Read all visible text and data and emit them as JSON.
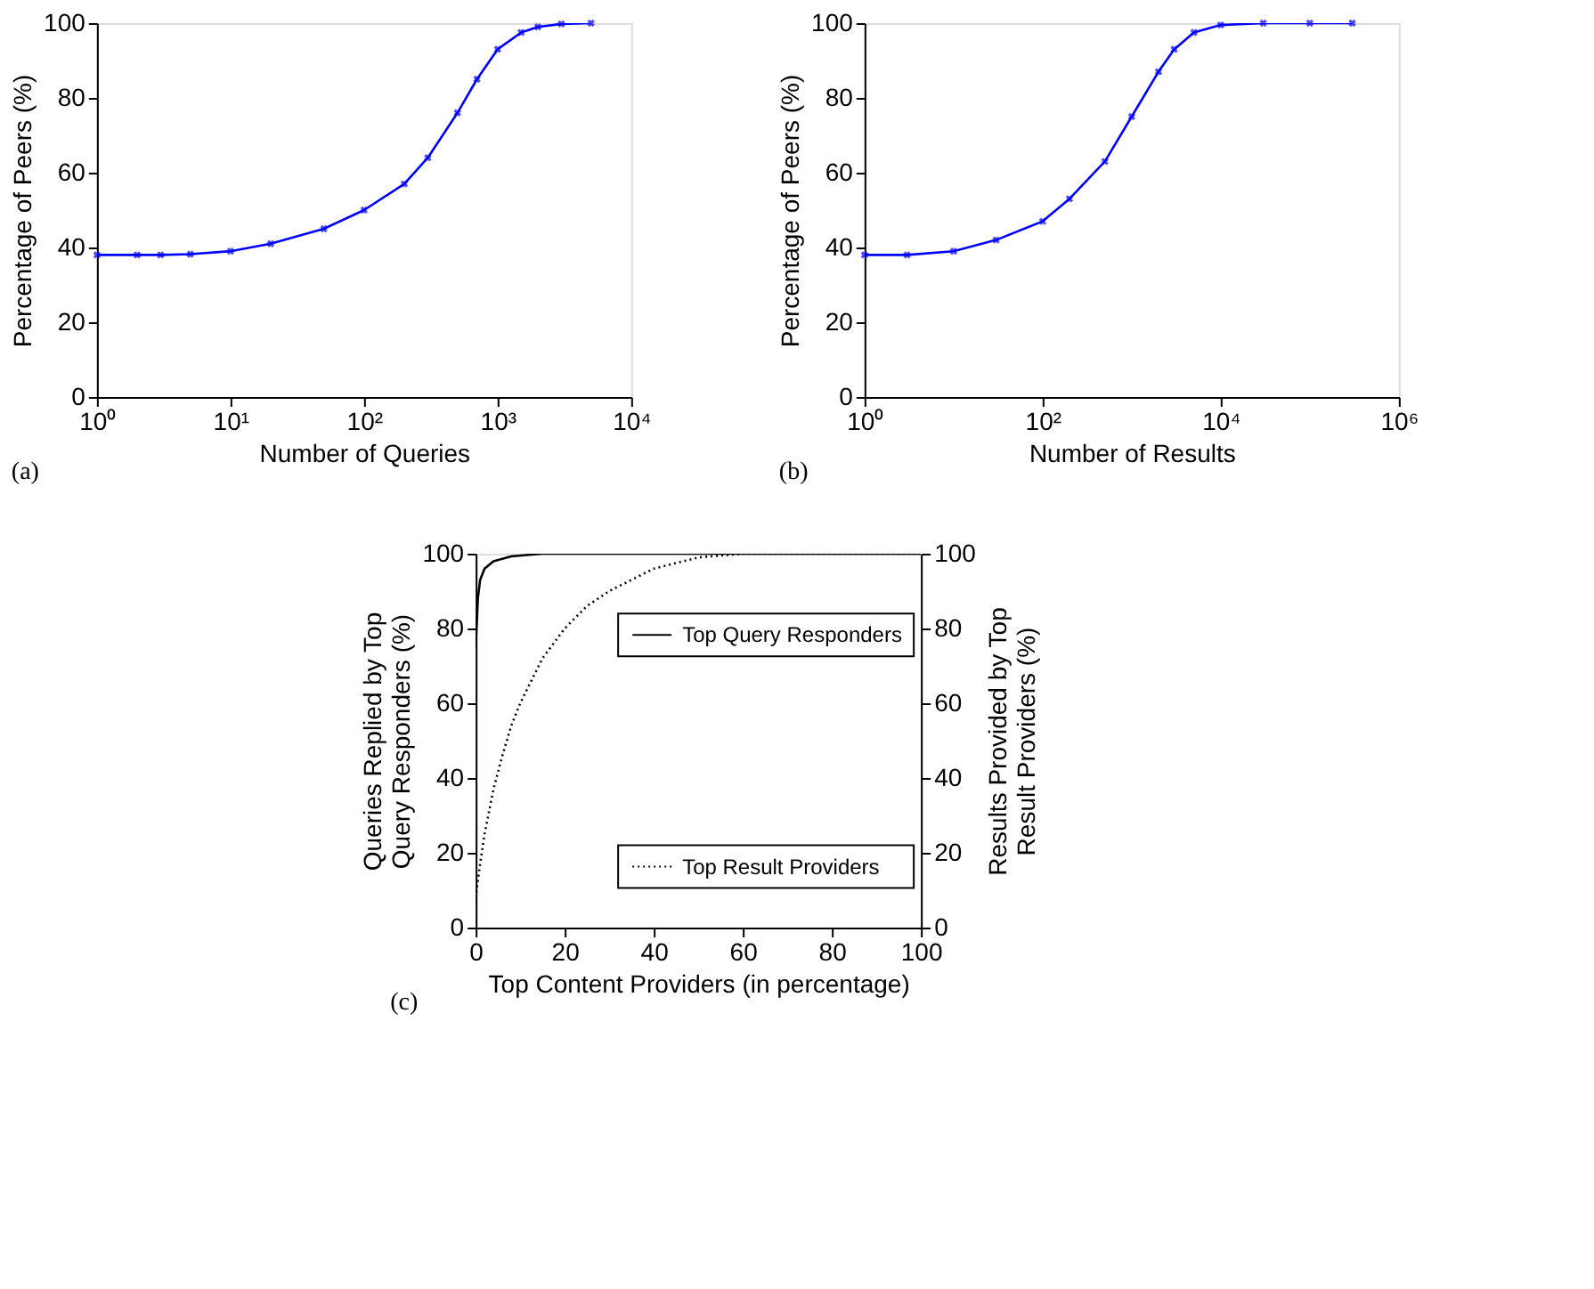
{
  "chart_data": [
    {
      "type": "line",
      "xlabel": "Number of Queries",
      "ylabel": "Percentage of Peers (%)",
      "annotations": [
        "(a)"
      ],
      "log": "x",
      "marker": "cross",
      "grid": false,
      "x": [
        1,
        2,
        3,
        5,
        10,
        20,
        50,
        100,
        200,
        300,
        500,
        700,
        1000,
        1500,
        2000,
        3000,
        5000
      ],
      "xlim": [
        1,
        10000
      ],
      "xticks": [
        {
          "value": 1,
          "label": "10⁰"
        },
        {
          "value": 10,
          "label": "10¹"
        },
        {
          "value": 100,
          "label": "10²"
        },
        {
          "value": 1000,
          "label": "10³"
        },
        {
          "value": 10000,
          "label": "10⁴"
        }
      ],
      "ylim": [
        0,
        100
      ],
      "yticks": [
        0,
        20,
        40,
        60,
        80,
        100
      ],
      "series": [
        {
          "color": "#0000ff",
          "values": [
            38,
            38,
            38,
            38.2,
            39,
            41,
            45,
            50,
            57,
            64,
            76,
            85,
            93,
            97.5,
            99,
            99.8,
            100
          ]
        }
      ]
    },
    {
      "type": "line",
      "xlabel": "Number of Results",
      "ylabel": "Percentage of Peers (%)",
      "annotations": [
        "(b)"
      ],
      "log": "x",
      "marker": "cross",
      "grid": false,
      "x": [
        1,
        3,
        10,
        30,
        100,
        200,
        500,
        1000,
        2000,
        3000,
        5000,
        10000,
        30000,
        100000,
        300000
      ],
      "xlim": [
        1,
        1000000
      ],
      "xticks": [
        {
          "value": 1,
          "label": "10⁰"
        },
        {
          "value": 100,
          "label": "10²"
        },
        {
          "value": 10000,
          "label": "10⁴"
        },
        {
          "value": 1000000,
          "label": "10⁶"
        }
      ],
      "ylim": [
        0,
        100
      ],
      "yticks": [
        0,
        20,
        40,
        60,
        80,
        100
      ],
      "series": [
        {
          "color": "#0000ff",
          "values": [
            38,
            38,
            39,
            42,
            47,
            53,
            63,
            75,
            87,
            93,
            97.5,
            99.5,
            100,
            100,
            100
          ]
        }
      ]
    },
    {
      "type": "line",
      "xlabel": "Top Content Providers (in percentage)",
      "ylabel": "Queries Replied by Top Query Responders (%)",
      "y2label": "Results Provided by Top Result Providers (%)",
      "annotations": [
        "(c)"
      ],
      "grid": false,
      "legend": "right",
      "xlim": [
        0,
        100
      ],
      "xticks": [
        0,
        20,
        40,
        60,
        80,
        100
      ],
      "ylim": [
        0,
        100
      ],
      "yticks": [
        0,
        20,
        40,
        60,
        80,
        100
      ],
      "y2lim": [
        0,
        100
      ],
      "y2ticks": [
        0,
        20,
        40,
        60,
        80,
        100
      ],
      "series": [
        {
          "name": "Top Query Responders",
          "color": "#000000",
          "line_style": "solid",
          "x": [
            0,
            0.2,
            0.5,
            1,
            2,
            4,
            8,
            15,
            100
          ],
          "values": [
            75,
            80,
            88,
            93,
            96,
            98,
            99.3,
            100,
            100
          ]
        },
        {
          "name": "Top Result Providers",
          "color": "#000000",
          "line_style": "dotted",
          "axis": "y2",
          "x": [
            0,
            1,
            2,
            4,
            6,
            8,
            10,
            15,
            20,
            25,
            30,
            40,
            50,
            60,
            100
          ],
          "values": [
            8,
            17,
            25,
            37,
            46,
            54,
            60,
            72,
            80,
            86,
            90,
            96,
            99,
            100,
            100
          ]
        }
      ]
    }
  ]
}
